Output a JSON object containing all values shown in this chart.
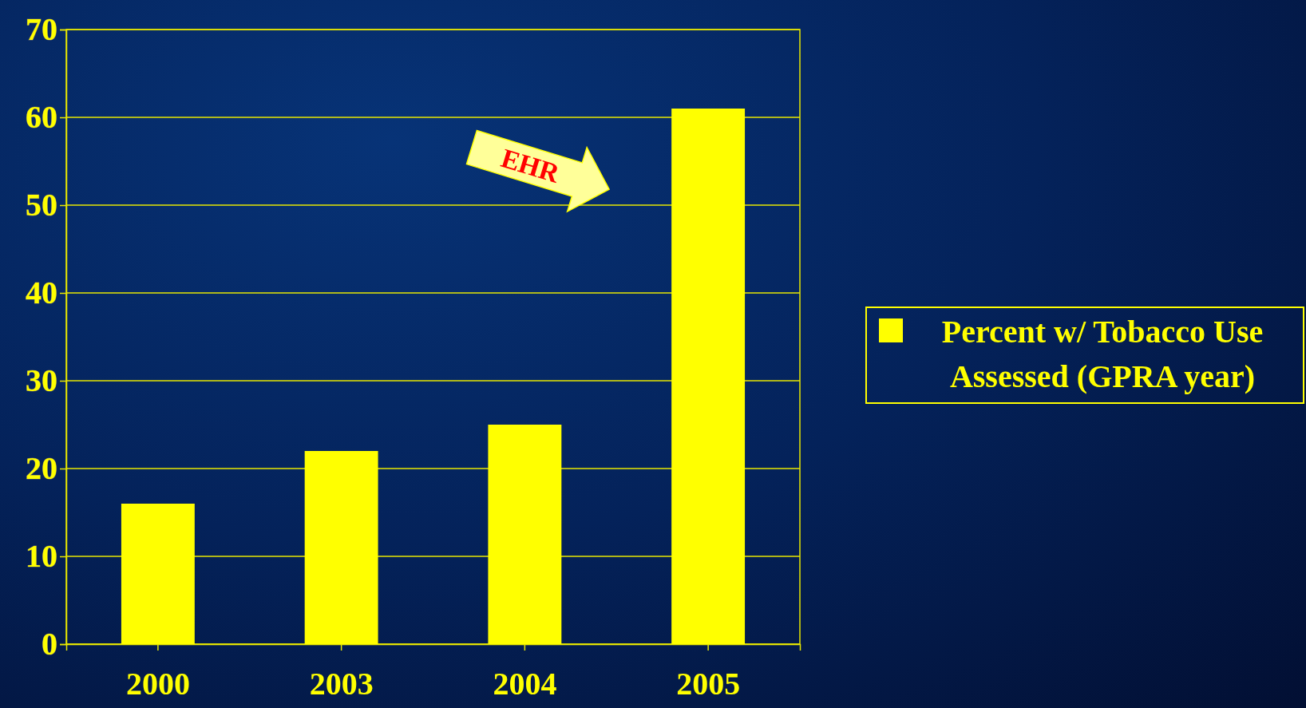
{
  "chart_data": {
    "type": "bar",
    "categories": [
      "2000",
      "2003",
      "2004",
      "2005"
    ],
    "series": [
      {
        "name": "Percent w/ Tobacco Use Assessed (GPRA year)",
        "color": "#ffff00",
        "values": [
          16,
          22,
          25,
          61
        ]
      }
    ],
    "ylim": [
      0,
      70
    ],
    "yticks": [
      0,
      10,
      20,
      30,
      40,
      50,
      60,
      70
    ],
    "grid": "y",
    "legend": "right",
    "annotations": [
      "EHR"
    ]
  }
}
